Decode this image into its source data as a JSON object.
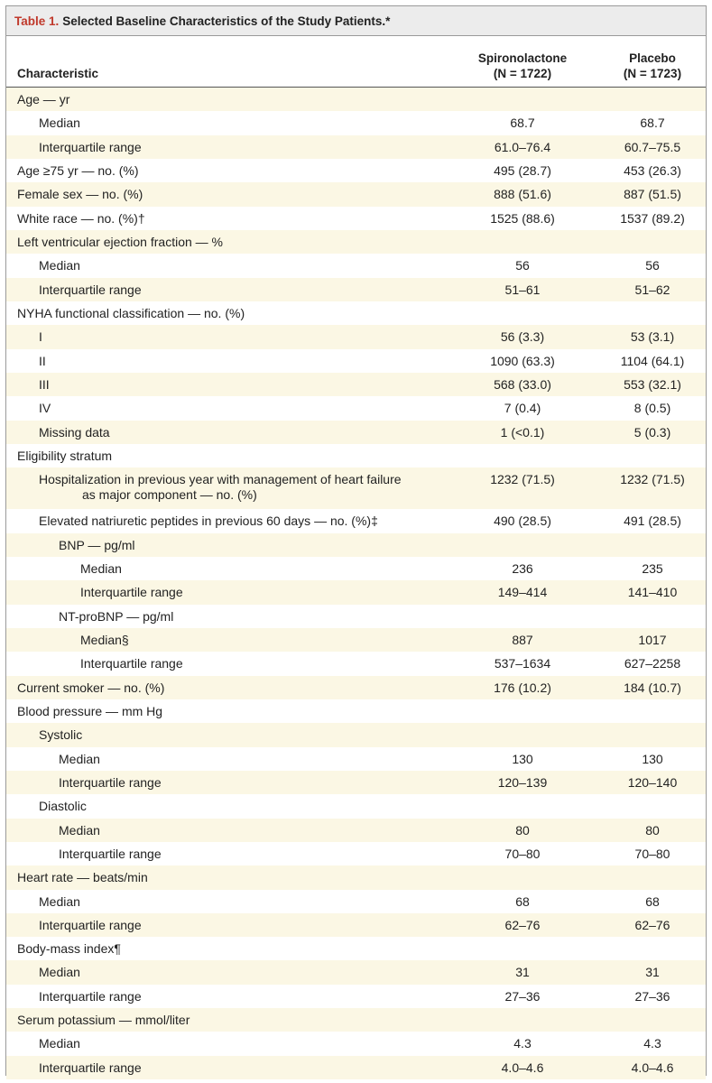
{
  "title": {
    "label": "Table 1.",
    "text": "Selected Baseline Characteristics of the Study Patients.*"
  },
  "header": {
    "characteristic": "Characteristic",
    "col1_name": "Spironolactone",
    "col1_n": "(N = 1722)",
    "col2_name": "Placebo",
    "col2_n": "(N = 1723)"
  },
  "rows": [
    {
      "label": "Age — yr",
      "v1": "",
      "v2": ""
    },
    {
      "label": "Median",
      "v1": "68.7",
      "v2": "68.7"
    },
    {
      "label": "Interquartile range",
      "v1": "61.0–76.4",
      "v2": "60.7–75.5"
    },
    {
      "label": "Age ≥75 yr — no. (%)",
      "v1": "495 (28.7)",
      "v2": "453 (26.3)"
    },
    {
      "label": "Female sex — no. (%)",
      "v1": "888 (51.6)",
      "v2": "887 (51.5)"
    },
    {
      "label": "White race — no. (%)†",
      "v1": "1525 (88.6)",
      "v2": "1537 (89.2)"
    },
    {
      "label": "Left ventricular ejection fraction — %",
      "v1": "",
      "v2": ""
    },
    {
      "label": "Median",
      "v1": "56",
      "v2": "56"
    },
    {
      "label": "Interquartile range",
      "v1": "51–61",
      "v2": "51–62"
    },
    {
      "label": "NYHA functional classification — no. (%)",
      "v1": "",
      "v2": ""
    },
    {
      "label": "I",
      "v1": "56 (3.3)",
      "v2": "53 (3.1)"
    },
    {
      "label": "II",
      "v1": "1090 (63.3)",
      "v2": "1104 (64.1)"
    },
    {
      "label": "III",
      "v1": "568 (33.0)",
      "v2": "553 (32.1)"
    },
    {
      "label": "IV",
      "v1": "7 (0.4)",
      "v2": "8 (0.5)"
    },
    {
      "label": "Missing data",
      "v1": "1 (<0.1)",
      "v2": "5 (0.3)"
    },
    {
      "label": "Eligibility stratum",
      "v1": "",
      "v2": ""
    },
    {
      "label": "Hospitalization in previous year with management of heart failure",
      "label2": "as major component — no. (%)",
      "v1": "1232 (71.5)",
      "v2": "1232 (71.5)"
    },
    {
      "label": "Elevated natriuretic peptides in previous 60 days — no. (%)‡",
      "v1": "490 (28.5)",
      "v2": "491 (28.5)"
    },
    {
      "label": "BNP — pg/ml",
      "v1": "",
      "v2": ""
    },
    {
      "label": "Median",
      "v1": "236",
      "v2": "235"
    },
    {
      "label": "Interquartile range",
      "v1": "149–414",
      "v2": "141–410"
    },
    {
      "label": "NT-proBNP — pg/ml",
      "v1": "",
      "v2": ""
    },
    {
      "label": "Median§",
      "v1": "887",
      "v2": "1017"
    },
    {
      "label": "Interquartile range",
      "v1": "537–1634",
      "v2": "627–2258"
    },
    {
      "label": "Current smoker — no. (%)",
      "v1": "176 (10.2)",
      "v2": "184 (10.7)"
    },
    {
      "label": "Blood pressure — mm Hg",
      "v1": "",
      "v2": ""
    },
    {
      "label": "Systolic",
      "v1": "",
      "v2": ""
    },
    {
      "label": "Median",
      "v1": "130",
      "v2": "130"
    },
    {
      "label": "Interquartile range",
      "v1": "120–139",
      "v2": "120–140"
    },
    {
      "label": "Diastolic",
      "v1": "",
      "v2": ""
    },
    {
      "label": "Median",
      "v1": "80",
      "v2": "80"
    },
    {
      "label": "Interquartile range",
      "v1": "70–80",
      "v2": "70–80"
    },
    {
      "label": "Heart rate — beats/min",
      "v1": "",
      "v2": ""
    },
    {
      "label": "Median",
      "v1": "68",
      "v2": "68"
    },
    {
      "label": "Interquartile range",
      "v1": "62–76",
      "v2": "62–76"
    },
    {
      "label": "Body-mass index¶",
      "v1": "",
      "v2": ""
    },
    {
      "label": "Median",
      "v1": "31",
      "v2": "31"
    },
    {
      "label": "Interquartile range",
      "v1": "27–36",
      "v2": "27–36"
    },
    {
      "label": "Serum potassium — mmol/liter",
      "v1": "",
      "v2": ""
    },
    {
      "label": "Median",
      "v1": "4.3",
      "v2": "4.3"
    },
    {
      "label": "Interquartile range",
      "v1": "4.0–4.6",
      "v2": "4.0–4.6"
    }
  ]
}
